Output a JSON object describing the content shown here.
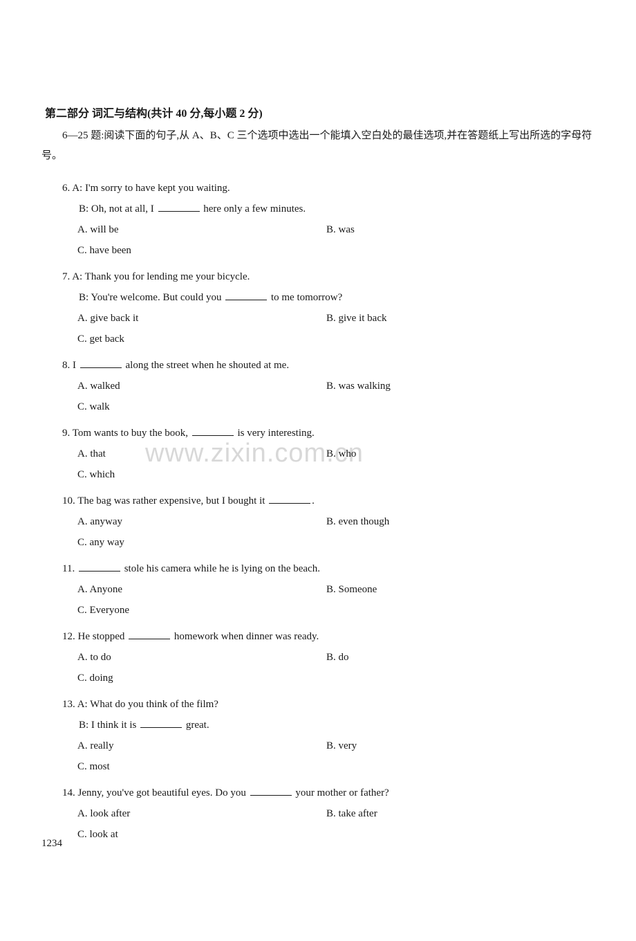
{
  "section": {
    "header": "第二部分  词汇与结构(共计 40 分,每小题 2 分)",
    "instruction": "6—25 题:阅读下面的句子,从 A、B、C 三个选项中选出一个能填入空白处的最佳选项,并在答题纸上写出所选的字母符号。"
  },
  "watermark": "www.zixin.com.cn",
  "page_number": "1234",
  "questions": [
    {
      "num": "6.",
      "lineA": "A: I'm sorry to have kept you waiting.",
      "lineB_pre": "B: Oh, not at all, I ",
      "lineB_post": " here only a few minutes.",
      "optA": "A.  will be",
      "optB": "B.  was",
      "optC": "C.  have been"
    },
    {
      "num": "7.",
      "lineA": "A: Thank you for lending me your bicycle.",
      "lineB_pre": "B: You're welcome. But could you ",
      "lineB_post": " to me tomorrow?",
      "optA": "A.  give back it",
      "optB": "B.  give it back",
      "optC": "C.  get back"
    },
    {
      "num": "8.",
      "line_pre": "I ",
      "line_post": " along the street when he shouted at me.",
      "optA": "A.  walked",
      "optB": "B.  was walking",
      "optC": "C.  walk"
    },
    {
      "num": "9.",
      "line_pre": "Tom wants to buy the book, ",
      "line_post": " is very interesting.",
      "optA": "A.  that",
      "optB": "B.  who",
      "optC": "C.  which"
    },
    {
      "num": "10.",
      "line_pre": "The bag was rather expensive, but I bought it ",
      "line_post": ".",
      "optA": "A.  anyway",
      "optB": "B.  even though",
      "optC": "C.  any way"
    },
    {
      "num": "11.",
      "line_pre": "",
      "line_post": " stole his camera while he is lying on the beach.",
      "optA": "A.  Anyone",
      "optB": "B.  Someone",
      "optC": "C.  Everyone"
    },
    {
      "num": "12.",
      "line_pre": "He stopped ",
      "line_post": " homework when dinner was ready.",
      "optA": "A.  to do",
      "optB": "B.  do",
      "optC": "C.  doing"
    },
    {
      "num": "13.",
      "lineA": "A: What do you think of the film?",
      "lineB_pre": "B: I think it is ",
      "lineB_post": " great.",
      "optA": "A.  really",
      "optB": "B.  very",
      "optC": "C.  most"
    },
    {
      "num": "14.",
      "line_pre": "Jenny, you've got beautiful eyes. Do you ",
      "line_post": " your mother or father?",
      "optA": "A.  look after",
      "optB": "B.  take after",
      "optC": "C.  look at"
    }
  ]
}
